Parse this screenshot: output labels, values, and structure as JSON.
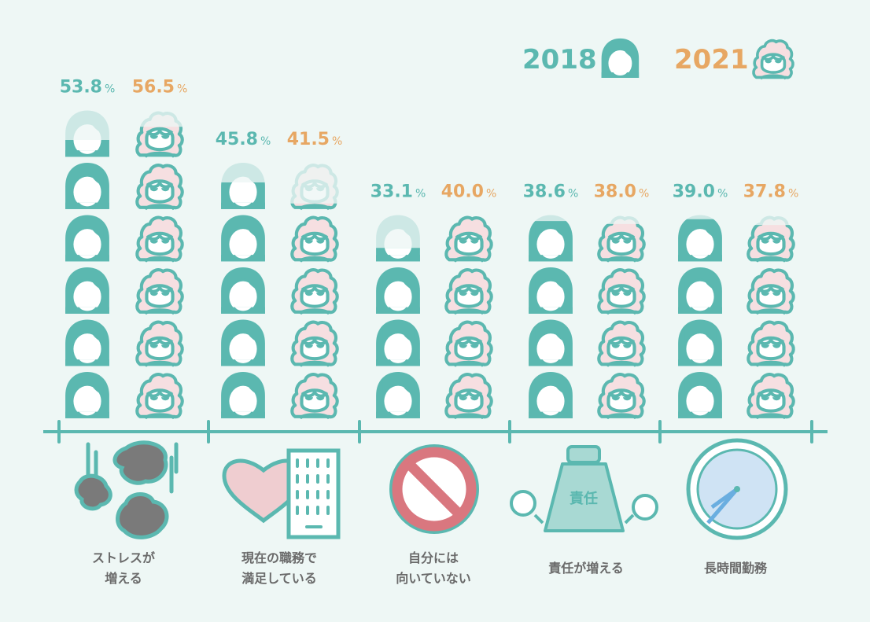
{
  "colors": {
    "y2018": "#5bb8b0",
    "y2021": "#e7a763",
    "hair2021": "#f6dfe1",
    "background": "#eef7f5",
    "label": "#6a6a6a"
  },
  "legend": {
    "y2018": "2018",
    "y2021": "2021"
  },
  "chart_data": {
    "type": "bar",
    "title": "",
    "xlabel": "",
    "ylabel": "",
    "unit": "%",
    "icon_value": 10,
    "categories": [
      "ストレスが\n増える",
      "現在の職務で\n満足している",
      "自分には\n向いていない",
      "責任が増える",
      "長時間勤務"
    ],
    "category_icons": [
      "stress-cloud-icon",
      "heart-building-icon",
      "prohibited-icon",
      "weight-responsibility-icon",
      "clock-icon"
    ],
    "weight_label": "責任",
    "series": [
      {
        "name": "2018",
        "values": [
          53.8,
          45.8,
          33.1,
          38.6,
          39.0
        ]
      },
      {
        "name": "2021",
        "values": [
          56.5,
          41.5,
          40.0,
          38.0,
          37.8
        ]
      }
    ]
  }
}
